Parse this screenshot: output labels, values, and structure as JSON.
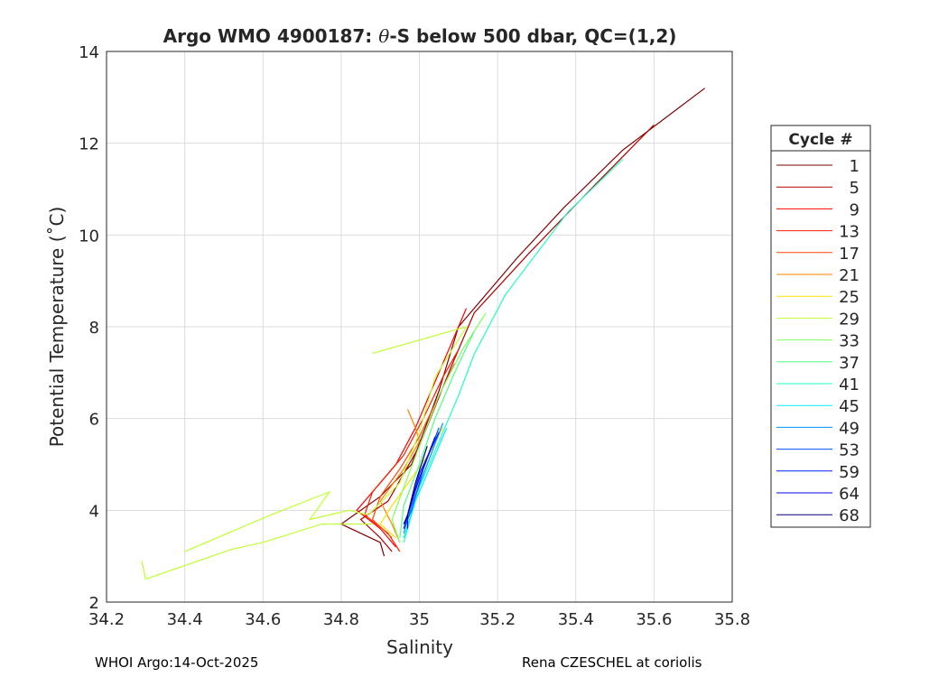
{
  "chart_data": {
    "type": "line",
    "title_prefix": "Argo WMO 4900187: ",
    "title_theta": "θ",
    "title_suffix": "-S below 500 dbar,  QC=(1,2)",
    "xlabel": "Salinity",
    "ylabel": "Potential Temperature (˚C)",
    "xlim": [
      34.2,
      35.8
    ],
    "ylim": [
      2,
      14
    ],
    "xticks": [
      "34.2",
      "34.4",
      "34.6",
      "34.8",
      "35",
      "35.2",
      "35.4",
      "35.6",
      "35.8"
    ],
    "yticks": [
      "2",
      "4",
      "6",
      "8",
      "10",
      "12",
      "14"
    ],
    "grid": true,
    "legend": {
      "title": "Cycle #",
      "placement": "right",
      "entries": [
        {
          "label": "1",
          "color": "#800000"
        },
        {
          "label": "5",
          "color": "#b00000"
        },
        {
          "label": "9",
          "color": "#ff0000"
        },
        {
          "label": "13",
          "color": "#ff1a00"
        },
        {
          "label": "17",
          "color": "#ff4500"
        },
        {
          "label": "21",
          "color": "#ff8000"
        },
        {
          "label": "25",
          "color": "#ffe000"
        },
        {
          "label": "29",
          "color": "#c0ff30"
        },
        {
          "label": "33",
          "color": "#80ff60"
        },
        {
          "label": "37",
          "color": "#50ff80"
        },
        {
          "label": "41",
          "color": "#20ffc0"
        },
        {
          "label": "45",
          "color": "#00f0ff"
        },
        {
          "label": "49",
          "color": "#0090ff"
        },
        {
          "label": "53",
          "color": "#0050ff"
        },
        {
          "label": "59",
          "color": "#0020ff"
        },
        {
          "label": "64",
          "color": "#0000f0"
        },
        {
          "label": "68",
          "color": "#000080"
        }
      ]
    },
    "series": [
      {
        "name": "1",
        "color": "#800000",
        "points": [
          [
            35.73,
            13.2
          ],
          [
            35.52,
            11.85
          ],
          [
            35.37,
            10.6
          ],
          [
            35.25,
            9.5
          ],
          [
            35.1,
            8.0
          ],
          [
            35.05,
            6.6
          ],
          [
            34.98,
            5.0
          ],
          [
            34.9,
            4.3
          ],
          [
            34.8,
            3.7
          ],
          [
            34.9,
            3.3
          ],
          [
            34.91,
            3.0
          ]
        ]
      },
      {
        "name": "5",
        "color": "#b00000",
        "points": [
          [
            35.6,
            12.4
          ],
          [
            35.45,
            11.1
          ],
          [
            35.28,
            9.6
          ],
          [
            35.14,
            8.3
          ],
          [
            35.08,
            7.1
          ],
          [
            35.0,
            5.4
          ],
          [
            34.92,
            4.2
          ],
          [
            34.85,
            3.8
          ],
          [
            34.9,
            3.4
          ],
          [
            34.93,
            3.1
          ]
        ]
      },
      {
        "name": "9",
        "color": "#ff0000",
        "points": [
          [
            35.12,
            8.4
          ],
          [
            35.08,
            7.6
          ],
          [
            35.04,
            6.8
          ],
          [
            34.99,
            5.8
          ],
          [
            34.94,
            5.0
          ],
          [
            34.84,
            4.0
          ],
          [
            34.9,
            3.6
          ],
          [
            34.94,
            3.2
          ]
        ]
      },
      {
        "name": "13",
        "color": "#ff1a00",
        "points": [
          [
            35.1,
            7.5
          ],
          [
            35.06,
            6.9
          ],
          [
            35.01,
            6.0
          ],
          [
            34.96,
            5.2
          ],
          [
            34.88,
            4.4
          ],
          [
            34.86,
            3.9
          ],
          [
            34.92,
            3.5
          ],
          [
            34.95,
            3.1
          ]
        ]
      },
      {
        "name": "17",
        "color": "#ff4500",
        "points": [
          [
            35.09,
            7.2
          ],
          [
            35.05,
            6.5
          ],
          [
            35.0,
            5.6
          ],
          [
            34.95,
            4.9
          ],
          [
            34.9,
            4.3
          ],
          [
            34.88,
            3.8
          ],
          [
            34.93,
            3.4
          ]
        ]
      },
      {
        "name": "21",
        "color": "#ff8000",
        "points": [
          [
            34.97,
            6.2
          ],
          [
            34.99,
            5.8
          ],
          [
            35.0,
            5.5
          ],
          [
            34.96,
            4.9
          ],
          [
            34.9,
            4.2
          ],
          [
            34.93,
            3.7
          ],
          [
            34.95,
            3.3
          ]
        ]
      },
      {
        "name": "25",
        "color": "#ffe000",
        "points": [
          [
            35.06,
            5.8
          ],
          [
            35.03,
            5.3
          ],
          [
            34.98,
            4.7
          ],
          [
            34.93,
            4.1
          ],
          [
            34.9,
            3.7
          ],
          [
            34.94,
            3.4
          ]
        ]
      },
      {
        "name": "29",
        "color": "#c0ff30",
        "points": [
          [
            34.88,
            7.42
          ],
          [
            35.12,
            8.0
          ],
          [
            35.04,
            6.9
          ],
          [
            35.0,
            5.7
          ],
          [
            34.95,
            4.6
          ],
          [
            34.87,
            3.9
          ],
          [
            34.82,
            4.0
          ],
          [
            34.72,
            3.8
          ],
          [
            34.77,
            4.4
          ],
          [
            34.62,
            3.9
          ],
          [
            34.4,
            3.1
          ]
        ]
      },
      {
        "name": "29b",
        "color": "#c0ff30",
        "points": [
          [
            34.88,
            3.7
          ],
          [
            34.75,
            3.7
          ],
          [
            34.6,
            3.3
          ],
          [
            34.52,
            3.15
          ],
          [
            34.3,
            2.5
          ],
          [
            34.29,
            2.9
          ]
        ]
      },
      {
        "name": "33",
        "color": "#80ff60",
        "points": [
          [
            35.17,
            8.3
          ],
          [
            35.11,
            7.5
          ],
          [
            35.05,
            6.5
          ],
          [
            35.0,
            5.4
          ],
          [
            34.96,
            4.5
          ],
          [
            34.93,
            3.8
          ],
          [
            34.95,
            3.3
          ]
        ]
      },
      {
        "name": "37",
        "color": "#50ff80",
        "points": [
          [
            35.14,
            7.9
          ],
          [
            35.09,
            7.0
          ],
          [
            35.04,
            6.0
          ],
          [
            35.0,
            5.0
          ],
          [
            34.96,
            4.1
          ],
          [
            34.95,
            3.4
          ]
        ]
      },
      {
        "name": "41",
        "color": "#20ffc0",
        "points": [
          [
            35.52,
            11.65
          ],
          [
            35.38,
            10.5
          ],
          [
            35.22,
            8.7
          ],
          [
            35.14,
            7.4
          ],
          [
            35.1,
            6.5
          ],
          [
            35.05,
            5.5
          ],
          [
            35.0,
            4.5
          ],
          [
            34.96,
            3.3
          ]
        ]
      },
      {
        "name": "45",
        "color": "#00f0ff",
        "points": [
          [
            35.07,
            5.8
          ],
          [
            35.03,
            5.0
          ],
          [
            34.99,
            4.2
          ],
          [
            34.96,
            3.4
          ]
        ]
      },
      {
        "name": "49",
        "color": "#0090ff",
        "points": [
          [
            35.06,
            5.9
          ],
          [
            35.02,
            5.0
          ],
          [
            34.98,
            4.1
          ],
          [
            34.96,
            3.5
          ]
        ]
      },
      {
        "name": "53",
        "color": "#0050ff",
        "points": [
          [
            35.05,
            5.8
          ],
          [
            35.01,
            4.9
          ],
          [
            34.98,
            4.0
          ],
          [
            34.96,
            3.6
          ]
        ]
      },
      {
        "name": "59",
        "color": "#0020ff",
        "points": [
          [
            35.05,
            5.7
          ],
          [
            35.0,
            4.8
          ],
          [
            34.97,
            3.9
          ],
          [
            34.96,
            3.6
          ]
        ]
      },
      {
        "name": "64",
        "color": "#0000f0",
        "points": [
          [
            35.04,
            5.6
          ],
          [
            35.0,
            4.7
          ],
          [
            34.97,
            3.9
          ],
          [
            34.97,
            3.6
          ]
        ]
      },
      {
        "name": "68",
        "color": "#000080",
        "points": [
          [
            35.02,
            5.4
          ],
          [
            34.99,
            4.6
          ],
          [
            34.97,
            3.9
          ],
          [
            34.96,
            3.7
          ]
        ]
      }
    ]
  },
  "footer": {
    "left": "WHOI Argo:14-Oct-2025",
    "right": "Rena CZESCHEL at coriolis"
  }
}
